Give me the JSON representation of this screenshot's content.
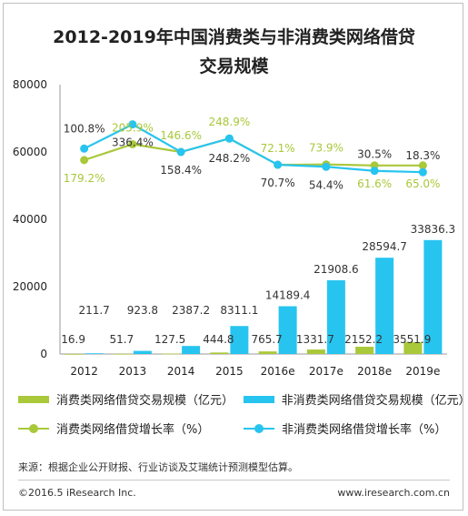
{
  "title_line1": "2012-2019年中国消费类与非消费类网络借贷",
  "title_line2": "交易规模",
  "chart_data": {
    "type": "bar",
    "categories": [
      "2012",
      "2013",
      "2014",
      "2015",
      "2016e",
      "2017e",
      "2018e",
      "2019e"
    ],
    "ylim": [
      0,
      80000
    ],
    "yticks": [
      0,
      20000,
      40000,
      60000,
      80000
    ],
    "series": [
      {
        "name": "消费类网络借贷交易规模（亿元）",
        "kind": "bar",
        "color": "#a9c83a",
        "values": [
          16.9,
          51.7,
          127.5,
          444.8,
          765.7,
          1331.7,
          2152.2,
          3551.9
        ],
        "labels": [
          "16.9",
          "51.7",
          "127.5",
          "444.8",
          "765.7",
          "1331.7",
          "2152.2",
          "3551.9"
        ]
      },
      {
        "name": "非消费类网络借贷交易规模（亿元）",
        "kind": "bar",
        "color": "#27c4f0",
        "values": [
          211.7,
          923.8,
          2387.2,
          8311.1,
          14189.4,
          21908.6,
          28594.7,
          33836.3
        ],
        "labels": [
          "211.7",
          "923.8",
          "2387.2",
          "8311.1",
          "14189.4",
          "21908.6",
          "28594.7",
          "33836.3"
        ]
      },
      {
        "name": "消费类网络借贷增长率（%）",
        "kind": "line",
        "color": "#a9c83a",
        "growth_percent": [
          179.2,
          205.9,
          146.6,
          248.9,
          72.1,
          73.9,
          61.6,
          65.0
        ],
        "labels": [
          "179.2%",
          "205.9%",
          "146.6%",
          "248.9%",
          "72.1%",
          "73.9%",
          "61.6%",
          "65.0%"
        ],
        "values_on_axis": [
          57600,
          62300,
          60000,
          64000,
          56200,
          56300,
          56000,
          56000
        ]
      },
      {
        "name": "非消费类网络借贷增长率（%）",
        "kind": "line",
        "color": "#27c4f0",
        "growth_percent": [
          100.8,
          336.4,
          158.4,
          248.2,
          70.7,
          54.4,
          30.5,
          18.3
        ],
        "labels": [
          "100.8%",
          "336.4%",
          "158.4%",
          "248.2%",
          "70.7%",
          "54.4%",
          "30.5%",
          "18.3%"
        ],
        "values_on_axis": [
          61000,
          68200,
          60000,
          64000,
          56200,
          55600,
          54400,
          54000
        ]
      }
    ],
    "legend": "bottom",
    "grid": false
  },
  "source": "来源：根据企业公开财报、行业访谈及艾瑞统计预测模型估算。",
  "copyright": "©2016.5 iResearch Inc.",
  "site": "www.iresearch.com.cn"
}
